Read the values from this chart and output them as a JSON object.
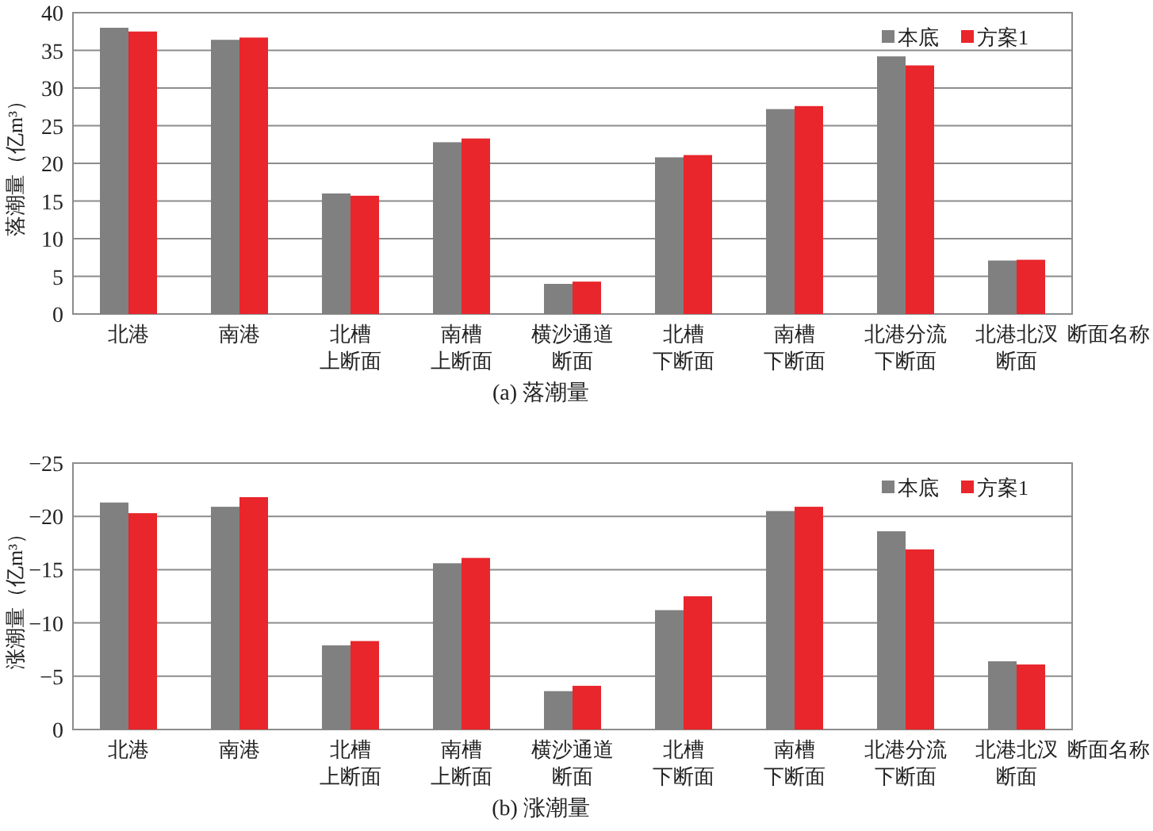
{
  "chart_data": [
    {
      "type": "bar",
      "title": "(a) 落潮量",
      "xlabel": "断面名称",
      "ylabel": "落潮量（亿m³）",
      "categories": [
        "北港",
        "南港",
        "北槽上断面",
        "南槽上断面",
        "横沙通道断面",
        "北槽下断面",
        "南槽下断面",
        "北港分流下断面",
        "北港北汊断面"
      ],
      "series": [
        {
          "name": "本底",
          "color": "#808080",
          "values": [
            38,
            36.4,
            16,
            22.8,
            4,
            20.8,
            27.2,
            34.2,
            7.1
          ]
        },
        {
          "name": "方案1",
          "color": "#e8262b",
          "values": [
            37.5,
            36.7,
            15.7,
            23.3,
            4.3,
            21.1,
            27.6,
            33,
            7.2
          ]
        }
      ],
      "ylim": [
        0,
        40
      ],
      "yticks": [
        0,
        5,
        10,
        15,
        20,
        25,
        30,
        35,
        40
      ],
      "grid": "y",
      "legend": "top right"
    },
    {
      "type": "bar",
      "title": "(b) 涨潮量",
      "xlabel": "断面名称",
      "ylabel": "涨潮量（亿m³）",
      "categories": [
        "北港",
        "南港",
        "北槽上断面",
        "南槽上断面",
        "横沙通道断面",
        "北槽下断面",
        "南槽下断面",
        "北港分流下断面",
        "北港北汊断面"
      ],
      "series": [
        {
          "name": "本底",
          "color": "#808080",
          "values": [
            -21.3,
            -20.9,
            -7.9,
            -15.6,
            -3.6,
            -11.2,
            -20.5,
            -18.6,
            -6.4
          ]
        },
        {
          "name": "方案1",
          "color": "#e8262b",
          "values": [
            -20.3,
            -21.8,
            -8.3,
            -16.1,
            -4.1,
            -12.5,
            -20.9,
            -16.9,
            -6.1
          ]
        }
      ],
      "ylim": [
        0,
        -25
      ],
      "yticks": [
        0,
        {
          "value": -5,
          "label": "−5"
        },
        {
          "value": -10,
          "label": "−10"
        },
        {
          "value": -15,
          "label": "−15"
        },
        {
          "value": -20,
          "label": "−20"
        },
        {
          "value": -25,
          "label": "−25"
        }
      ],
      "grid": "y",
      "legend": "top right"
    }
  ]
}
